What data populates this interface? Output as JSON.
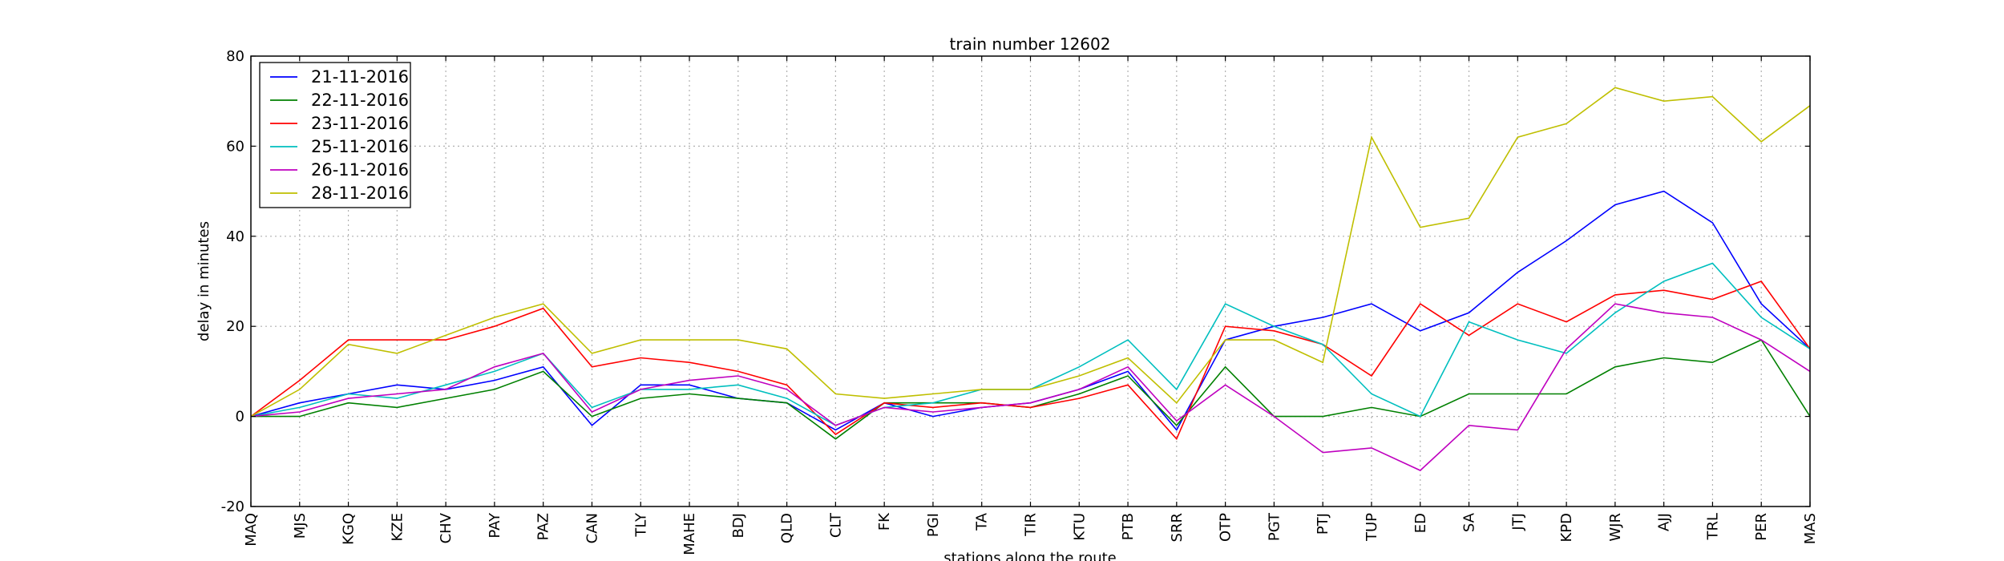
{
  "chart_data": {
    "type": "line",
    "title": "train number 12602",
    "xlabel": "stations along the route",
    "ylabel": "delay in minutes",
    "ylim": [
      -20,
      80
    ],
    "yticks": [
      -20,
      0,
      20,
      40,
      60,
      80
    ],
    "grid": true,
    "legend_position": "top-left",
    "categories": [
      "MAQ",
      "MJS",
      "KGQ",
      "KZE",
      "CHV",
      "PAY",
      "PAZ",
      "CAN",
      "TLY",
      "MAHE",
      "BDJ",
      "QLD",
      "CLT",
      "FK",
      "PGI",
      "TA",
      "TIR",
      "KTU",
      "PTB",
      "SRR",
      "OTP",
      "PGT",
      "PTJ",
      "TUP",
      "ED",
      "SA",
      "JTJ",
      "KPD",
      "WJR",
      "AJJ",
      "TRL",
      "PER",
      "MAS"
    ],
    "series": [
      {
        "name": "21-11-2016",
        "color": "#0000ff",
        "values": [
          0,
          3,
          5,
          7,
          6,
          8,
          11,
          -2,
          7,
          7,
          4,
          3,
          -3,
          3,
          0,
          2,
          3,
          6,
          10,
          -3,
          17,
          20,
          22,
          25,
          19,
          23,
          32,
          39,
          47,
          50,
          43,
          25,
          15
        ]
      },
      {
        "name": "22-11-2016",
        "color": "#008000",
        "values": [
          0,
          0,
          3,
          2,
          4,
          6,
          10,
          0,
          4,
          5,
          4,
          3,
          -5,
          3,
          3,
          3,
          2,
          5,
          9,
          -2,
          11,
          0,
          0,
          2,
          0,
          5,
          5,
          5,
          11,
          13,
          12,
          17,
          0
        ]
      },
      {
        "name": "23-11-2016",
        "color": "#ff0000",
        "values": [
          0,
          8,
          17,
          17,
          17,
          20,
          24,
          11,
          13,
          12,
          10,
          7,
          -4,
          3,
          2,
          3,
          2,
          4,
          7,
          -5,
          20,
          19,
          16,
          9,
          25,
          18,
          25,
          21,
          27,
          28,
          26,
          30,
          15
        ]
      },
      {
        "name": "25-11-2016",
        "color": "#00bfbf",
        "values": [
          0,
          2,
          5,
          4,
          7,
          10,
          14,
          2,
          6,
          6,
          7,
          4,
          -2,
          2,
          3,
          6,
          6,
          11,
          17,
          6,
          25,
          20,
          16,
          5,
          0,
          21,
          17,
          14,
          23,
          30,
          34,
          22,
          15
        ]
      },
      {
        "name": "26-11-2016",
        "color": "#bf00bf",
        "values": [
          0,
          1,
          4,
          5,
          6,
          11,
          14,
          1,
          6,
          8,
          9,
          6,
          -2,
          2,
          1,
          2,
          3,
          6,
          11,
          -1,
          7,
          0,
          -8,
          -7,
          -12,
          -2,
          -3,
          15,
          25,
          23,
          22,
          17,
          10
        ]
      },
      {
        "name": "28-11-2016",
        "color": "#bfbf00",
        "values": [
          0,
          6,
          16,
          14,
          18,
          22,
          25,
          14,
          17,
          17,
          17,
          15,
          5,
          4,
          5,
          6,
          6,
          9,
          13,
          3,
          17,
          17,
          12,
          62,
          42,
          44,
          62,
          65,
          73,
          70,
          71,
          61,
          69
        ]
      }
    ]
  }
}
